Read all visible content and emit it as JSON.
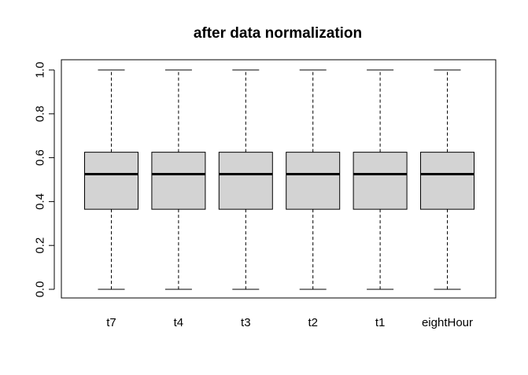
{
  "chart_data": {
    "type": "boxplot",
    "title": "after data normalization",
    "xlabel": "",
    "ylabel": "",
    "ylim": [
      -0.04,
      1.04
    ],
    "y_ticks": [
      0.0,
      0.2,
      0.4,
      0.6,
      0.8,
      1.0
    ],
    "y_tick_labels": [
      "0.0",
      "0.2",
      "0.4",
      "0.6",
      "0.8",
      "1.0"
    ],
    "categories": [
      "t7",
      "t4",
      "t3",
      "t2",
      "t1",
      "eightHour"
    ],
    "box_fill": "#d3d3d3",
    "boxes": [
      {
        "label": "t7",
        "min": 0.0,
        "q1": 0.365,
        "median": 0.525,
        "q3": 0.625,
        "max": 1.0
      },
      {
        "label": "t4",
        "min": 0.0,
        "q1": 0.365,
        "median": 0.525,
        "q3": 0.625,
        "max": 1.0
      },
      {
        "label": "t3",
        "min": 0.0,
        "q1": 0.365,
        "median": 0.525,
        "q3": 0.625,
        "max": 1.0
      },
      {
        "label": "t2",
        "min": 0.0,
        "q1": 0.365,
        "median": 0.525,
        "q3": 0.625,
        "max": 1.0
      },
      {
        "label": "t1",
        "min": 0.0,
        "q1": 0.365,
        "median": 0.525,
        "q3": 0.625,
        "max": 1.0
      },
      {
        "label": "eightHour",
        "min": 0.0,
        "q1": 0.365,
        "median": 0.525,
        "q3": 0.625,
        "max": 1.0
      }
    ],
    "grid": false,
    "legend": "none"
  }
}
